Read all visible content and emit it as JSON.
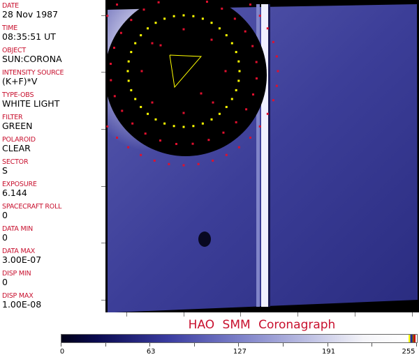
{
  "header_fields": [
    {
      "label": "DATE",
      "value": "28 Nov 1987"
    },
    {
      "label": "TIME",
      "value": "08:35:51 UT"
    },
    {
      "label": "OBJECT",
      "value": "SUN:CORONA"
    },
    {
      "label": "INTENSITY SOURCE",
      "value": "(K+F)*V"
    },
    {
      "label": "TYPE-OBS",
      "value": "WHITE LIGHT"
    },
    {
      "label": "FILTER",
      "value": "GREEN"
    },
    {
      "label": "POLAROID",
      "value": "CLEAR"
    },
    {
      "label": "SECTOR",
      "value": "S"
    },
    {
      "label": "EXPOSURE",
      "value": "6.144"
    },
    {
      "label": "SPACECRAFT ROLL",
      "value": "0"
    },
    {
      "label": "DATA MIN",
      "value": "0"
    },
    {
      "label": "DATA MAX",
      "value": "3.00E-07"
    },
    {
      "label": "DISP MIN",
      "value": "0"
    },
    {
      "label": "DISP MAX",
      "value": "1.00E-08"
    }
  ],
  "title": "HAO  SMM  Coronagraph",
  "colorbar": {
    "ticks": [
      "0",
      "63",
      "127",
      "191",
      "255"
    ],
    "colormap": [
      "#000018",
      "#3a3ca0",
      "#7c80c8",
      "#f4f4f8"
    ]
  },
  "colors": {
    "label": "#c8102e",
    "overlay_red": "#e0102e",
    "overlay_yellow": "#ffff00"
  }
}
